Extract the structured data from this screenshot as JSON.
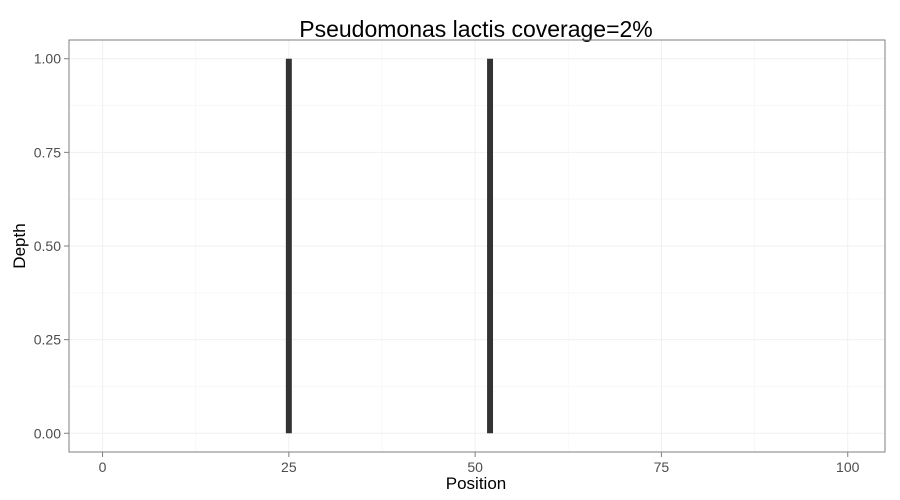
{
  "chart_data": {
    "type": "bar",
    "title": "Pseudomonas lactis coverage=2%",
    "xlabel": "Position",
    "ylabel": "Depth",
    "xlim": [
      -4.5,
      105
    ],
    "ylim": [
      -0.05,
      1.05
    ],
    "x_ticks": [
      0,
      25,
      50,
      75,
      100
    ],
    "y_ticks": [
      0,
      0.25,
      0.5,
      0.75,
      1.0
    ],
    "x_tick_labels": [
      "0",
      "25",
      "50",
      "75",
      "100"
    ],
    "y_tick_labels": [
      "0.00",
      "0.25",
      "0.50",
      "0.75",
      "1.00"
    ],
    "bar_width": 0.8,
    "grid": true,
    "bars": [
      {
        "x": 25,
        "y": 1.0
      },
      {
        "x": 52,
        "y": 1.0
      }
    ],
    "colors": {
      "bar": "#333333",
      "panel_border": "#7f7f7f",
      "grid_major": "#f0f0f0",
      "grid_minor": "#f8f8f8",
      "tick_text": "#4d4d4d",
      "tick_mark": "#7f7f7f"
    }
  }
}
